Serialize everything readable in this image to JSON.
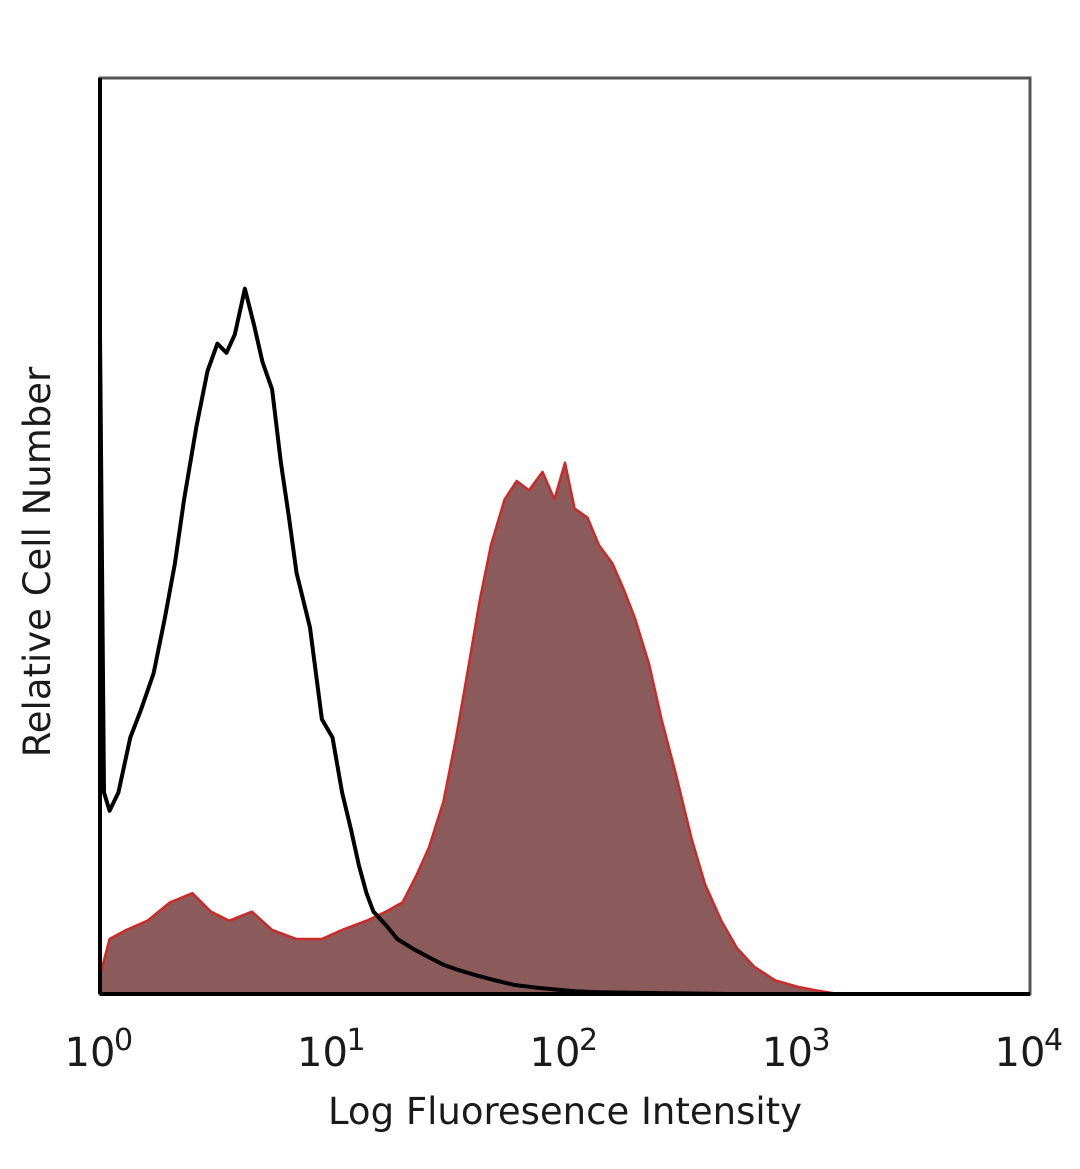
{
  "chart_data": {
    "type": "area",
    "xscale": "log",
    "xlim": [
      1,
      10000
    ],
    "ylim": [
      0,
      100
    ],
    "grid": false,
    "legend": "none",
    "xlabel": "Log Fluoresence Intensity",
    "ylabel": "Relative Cell Number",
    "xticks": [
      {
        "base": "10",
        "exp": "0",
        "value": 1
      },
      {
        "base": "10",
        "exp": "1",
        "value": 10
      },
      {
        "base": "10",
        "exp": "2",
        "value": 100
      },
      {
        "base": "10",
        "exp": "3",
        "value": 1000
      },
      {
        "base": "10",
        "exp": "4",
        "value": 10000
      }
    ],
    "series": [
      {
        "style": "filled",
        "color": "#8b5a5a",
        "edge_color": "#cc2a2a",
        "x": [
          1,
          1.1,
          1.3,
          1.6,
          2,
          2.5,
          3,
          3.6,
          4.5,
          5.5,
          7,
          9,
          11,
          14,
          17,
          20,
          23,
          26,
          30,
          34,
          38,
          43,
          48,
          55,
          62,
          70,
          80,
          90,
          100,
          110,
          125,
          140,
          160,
          180,
          200,
          230,
          260,
          300,
          350,
          400,
          470,
          550,
          650,
          800,
          1000,
          1200,
          1500
        ],
        "y": [
          2,
          6,
          7,
          8,
          10,
          11,
          9,
          8,
          9,
          7,
          6,
          6,
          7,
          8,
          9,
          10,
          13,
          16,
          21,
          28,
          35,
          43,
          49,
          54,
          56,
          55,
          57,
          54,
          58,
          53,
          52,
          49,
          47,
          44,
          41,
          36,
          30,
          24,
          17,
          12,
          8,
          5,
          3,
          1.5,
          0.8,
          0.4,
          0
        ]
      },
      {
        "style": "line",
        "color": "#000000",
        "x": [
          1,
          1.04,
          1.1,
          1.2,
          1.35,
          1.5,
          1.7,
          1.9,
          2.1,
          2.3,
          2.6,
          2.9,
          3.2,
          3.5,
          3.8,
          4.2,
          4.6,
          5,
          5.5,
          6,
          6.5,
          7,
          8,
          9,
          10,
          11,
          12,
          13,
          14,
          15,
          17,
          19,
          22,
          26,
          30,
          35,
          42,
          50,
          60,
          75,
          90,
          110,
          140,
          180,
          250,
          350,
          500
        ],
        "y": [
          72,
          22,
          20,
          22,
          28,
          31,
          35,
          41,
          47,
          54,
          62,
          68,
          71,
          70,
          72,
          77,
          73,
          69,
          66,
          58,
          52,
          46,
          40,
          30,
          28,
          22,
          18,
          14,
          11,
          9,
          7.5,
          6,
          5,
          4,
          3.2,
          2.6,
          2,
          1.5,
          1,
          0.7,
          0.5,
          0.3,
          0.2,
          0.15,
          0.1,
          0.05,
          0
        ]
      }
    ]
  }
}
